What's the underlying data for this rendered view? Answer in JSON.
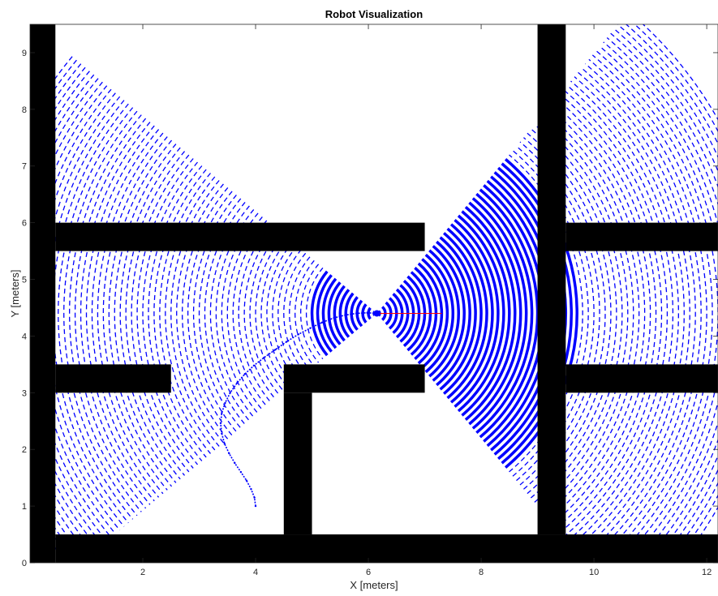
{
  "chart_data": {
    "type": "scatter",
    "title": "Robot Visualization",
    "xlabel": "X [meters]",
    "ylabel": "Y [meters]",
    "xlim": [
      0,
      12.2
    ],
    "ylim": [
      0,
      9.5
    ],
    "xticks": [
      2,
      4,
      6,
      8,
      10,
      12
    ],
    "yticks": [
      0,
      1,
      2,
      3,
      4,
      5,
      6,
      7,
      8,
      9
    ],
    "grid": false,
    "colors": {
      "walls": "#000000",
      "sensor": "#0000ff",
      "trajectory": "#0000ff",
      "heading": "#ff0000"
    },
    "walls": [
      {
        "x": [
          0.0,
          0.45
        ],
        "y": [
          0.0,
          9.5
        ]
      },
      {
        "x": [
          0.45,
          7.0
        ],
        "y": [
          5.5,
          6.0
        ]
      },
      {
        "x": [
          0.45,
          2.5
        ],
        "y": [
          3.0,
          3.5
        ]
      },
      {
        "x": [
          4.5,
          7.0
        ],
        "y": [
          3.0,
          3.5
        ]
      },
      {
        "x": [
          4.5,
          5.0
        ],
        "y": [
          0.5,
          3.0
        ]
      },
      {
        "x": [
          0.45,
          12.2
        ],
        "y": [
          0.0,
          0.5
        ]
      },
      {
        "x": [
          9.0,
          9.5
        ],
        "y": [
          0.5,
          9.5
        ]
      },
      {
        "x": [
          9.5,
          12.2
        ],
        "y": [
          5.5,
          6.0
        ]
      },
      {
        "x": [
          9.5,
          12.2
        ],
        "y": [
          3.0,
          3.5
        ]
      }
    ],
    "robot": {
      "x": 6.15,
      "y": 4.4,
      "heading_deg": 0
    },
    "heading_line": {
      "x": [
        6.15,
        7.3
      ],
      "y": [
        4.4,
        4.4
      ]
    },
    "sensor_cones": [
      {
        "name": "forward",
        "center": [
          6.15,
          4.4
        ],
        "start_deg": -50,
        "end_deg": 50,
        "r_min": 0.05,
        "r_max": 7.0,
        "ring_step": 0.1,
        "solid_until": 3.6,
        "ring_width": 0.05
      },
      {
        "name": "backward",
        "center": [
          6.15,
          4.4
        ],
        "start_deg": 140,
        "end_deg": 220,
        "r_min": 0.05,
        "r_max": 7.1,
        "ring_step": 0.1,
        "solid_until": 1.2,
        "ring_width": 0.05
      }
    ],
    "trajectory": {
      "x": [
        4.0,
        3.98,
        3.92,
        3.84,
        3.74,
        3.63,
        3.53,
        3.45,
        3.4,
        3.38,
        3.4,
        3.46,
        3.55,
        3.67,
        3.81,
        3.97,
        4.15,
        4.35,
        4.55,
        4.76,
        4.97,
        5.18,
        5.39,
        5.59,
        5.79,
        5.98,
        6.15
      ],
      "y": [
        1.0,
        1.15,
        1.3,
        1.45,
        1.6,
        1.76,
        1.93,
        2.1,
        2.28,
        2.46,
        2.64,
        2.82,
        3.0,
        3.17,
        3.33,
        3.48,
        3.62,
        3.76,
        3.9,
        4.03,
        4.14,
        4.24,
        4.32,
        4.37,
        4.4,
        4.41,
        4.4
      ]
    }
  }
}
